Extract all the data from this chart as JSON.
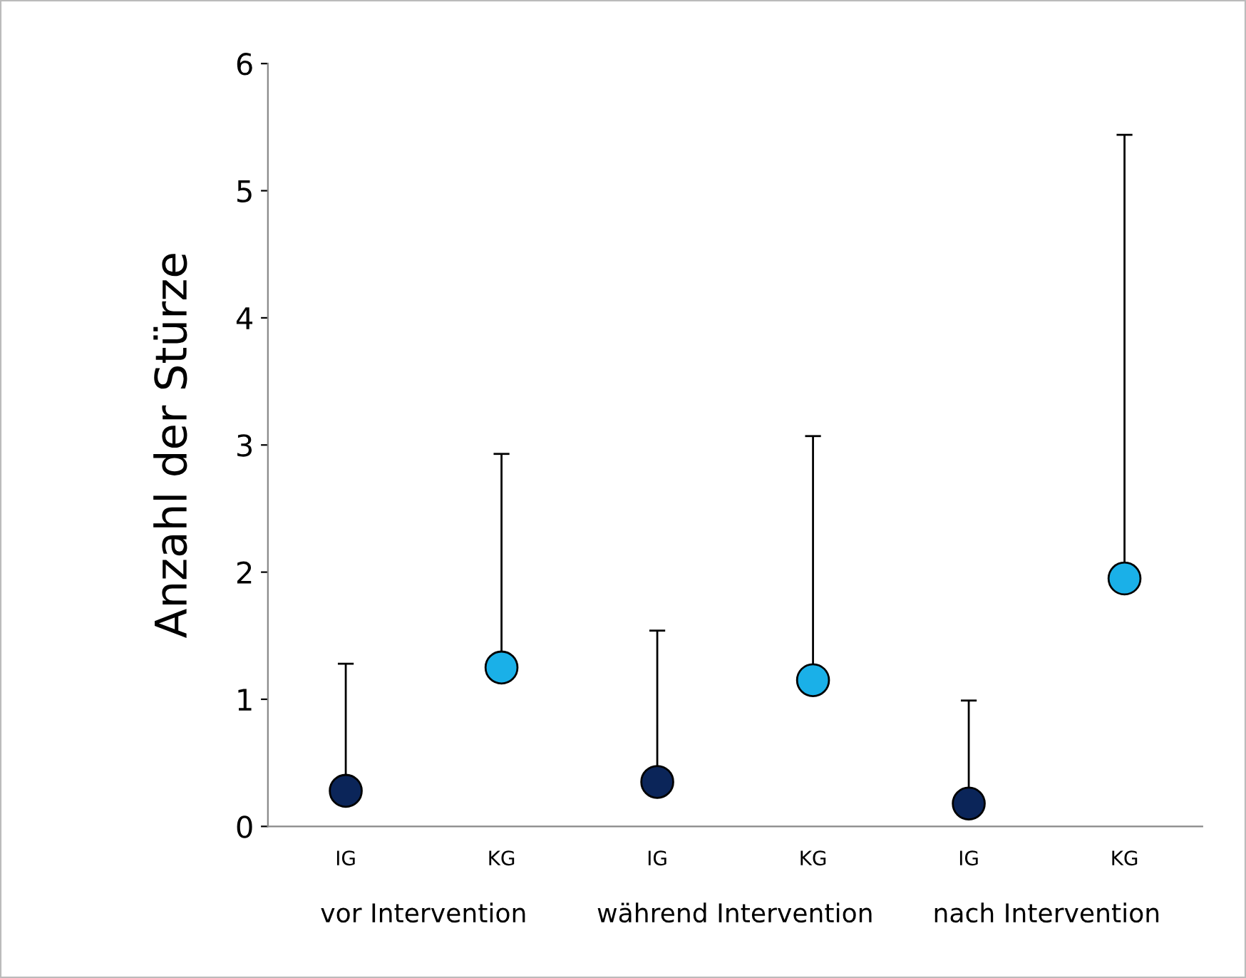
{
  "chart_data": {
    "type": "scatter",
    "ylabel": "Anzahl der Stürze",
    "categories": [
      "IG",
      "KG",
      "IG",
      "KG",
      "IG",
      "KG"
    ],
    "values": [
      0.28,
      1.25,
      0.35,
      1.15,
      0.18,
      1.95
    ],
    "colors": [
      "#0b2559",
      "#1ab0e8",
      "#0b2559",
      "#1ab0e8",
      "#0b2559",
      "#1ab0e8"
    ],
    "errors": [
      [
        0.28,
        1.28
      ],
      [
        1.25,
        2.93
      ],
      [
        0.35,
        1.54
      ],
      [
        1.15,
        3.07
      ],
      [
        0.18,
        0.99
      ],
      [
        1.95,
        5.44
      ]
    ],
    "ylim": [
      0,
      6
    ],
    "yticks": [
      0,
      1,
      2,
      3,
      4,
      5,
      6
    ],
    "annotations": [
      "vor Intervention",
      "während Intervention",
      "nach Intervention"
    ],
    "marker": "circle",
    "grid": false,
    "legend": false
  }
}
